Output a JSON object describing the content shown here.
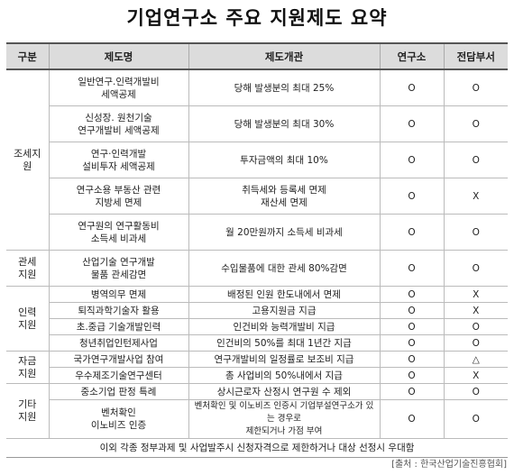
{
  "title": "기업연구소 주요 지원제도 요약",
  "headers": {
    "category": "구분",
    "name": "제도명",
    "overview": "제도개관",
    "lab": "연구소",
    "dept": "전담부서"
  },
  "groups": [
    {
      "category": "조세지\n원",
      "rows": [
        {
          "name": "일반연구.인력개발비\n세액공제",
          "desc": "당해 발생분의 최대 25%",
          "lab": "O",
          "dept": "O"
        },
        {
          "name": "신성장. 원천기술\n연구개발비 세액공제",
          "desc": "당해 발생분의 최대 30%",
          "lab": "O",
          "dept": "O"
        },
        {
          "name": "연구·인력개발\n설비투자 세액공제",
          "desc": "투자금액의 최대 10%",
          "lab": "O",
          "dept": "O"
        },
        {
          "name": "연구소용 부동산 관련\n지방세 면제",
          "desc": "취득세와 등록세 면제\n재산세 면제",
          "lab": "O",
          "dept": "X"
        },
        {
          "name": "연구원의 연구활동비\n소득세 비과세",
          "desc": "월 20만원까지 소득세 비과세",
          "lab": "O",
          "dept": "O"
        }
      ]
    },
    {
      "category": "관세\n지원",
      "rows": [
        {
          "name": "산업기술 연구개발\n물품 관세감면",
          "desc": "수입물품에 대한 관세 80%감면",
          "lab": "O",
          "dept": "O"
        }
      ]
    },
    {
      "category": "인력\n지원",
      "rows": [
        {
          "name": "병역의무 면제",
          "desc": "배정된 인원 한도내에서 면제",
          "lab": "O",
          "dept": "X"
        },
        {
          "name": "퇴직과학기술자 활용",
          "desc": "고용지원금 지급",
          "lab": "O",
          "dept": "X"
        },
        {
          "name": "초.중급 기술개발인력",
          "desc": "인건비와 능력개발비 지급",
          "lab": "O",
          "dept": "O"
        },
        {
          "name": "청년취업인턴제사업",
          "desc": "인건비의 50%를 최대 1년간 지급",
          "lab": "O",
          "dept": "O"
        }
      ]
    },
    {
      "category": "자금\n지원",
      "rows": [
        {
          "name": "국가연구개발사업 참여",
          "desc": "연구개발비의 일정률로 보조비 지급",
          "lab": "O",
          "dept": "△"
        },
        {
          "name": "우수제조기술연구센터",
          "desc": "총 사업비의 50%내에서 지급",
          "lab": "O",
          "dept": "X"
        }
      ]
    },
    {
      "category": "기타\n지원",
      "rows": [
        {
          "name": "중소기업 판정 특례",
          "desc": "상시근로자 산정시 연구원 수 제외",
          "lab": "O",
          "dept": "O"
        },
        {
          "name": "벤처확인\n이노비즈 인증",
          "desc": "벤처확인 및 이노비즈 인증시 기업부설연구소가 있는 경우로\n제한되거나 가점 부여",
          "lab": "O",
          "dept": "O"
        }
      ]
    }
  ],
  "note": "이외 각종 정부과제 및 사업발주시 신청자격으로 제한하거나 대상 선정시 우대함",
  "source": "[출처 : 한국산업기술진흥협회]"
}
